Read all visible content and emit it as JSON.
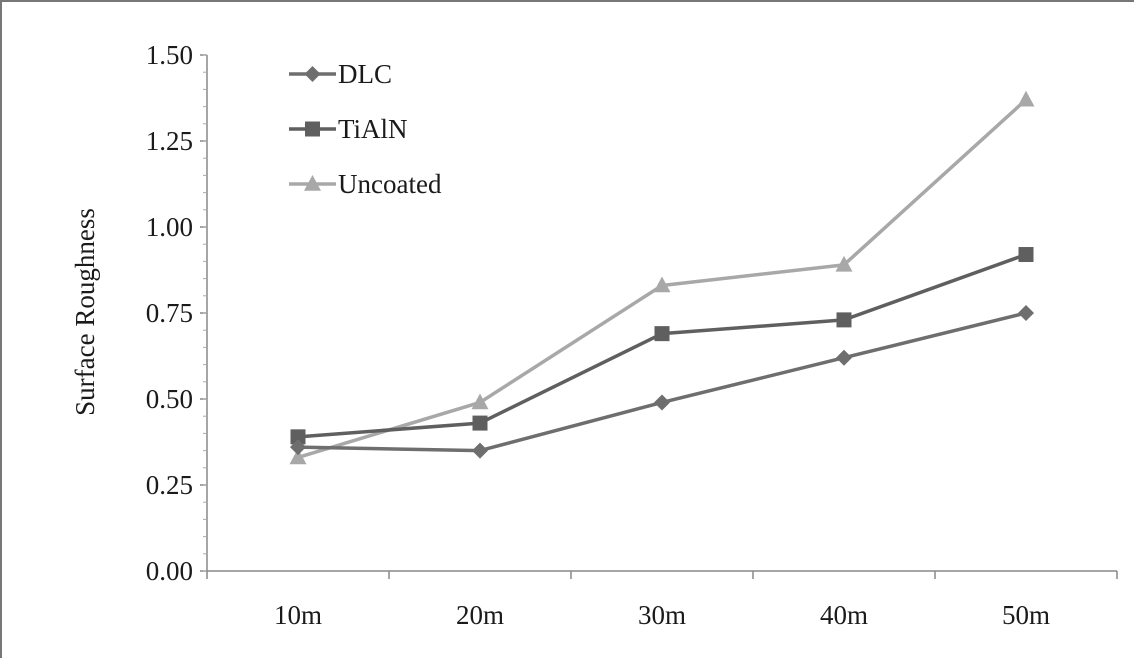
{
  "chart_data": {
    "type": "line",
    "title": "",
    "xlabel": "",
    "ylabel": "Surface Roughness",
    "categories": [
      "10m",
      "20m",
      "30m",
      "40m",
      "50m"
    ],
    "ylim": [
      0,
      1.5
    ],
    "yticks": [
      "0.00",
      "0.25",
      "0.50",
      "0.75",
      "1.00",
      "1.25",
      "1.50"
    ],
    "grid": false,
    "legend_position": "top-left",
    "series": [
      {
        "name": "DLC",
        "marker": "diamond",
        "color": "#6e6e6e",
        "values": [
          0.36,
          0.35,
          0.49,
          0.62,
          0.75
        ]
      },
      {
        "name": "TiAlN",
        "marker": "square",
        "color": "#5f5f5f",
        "values": [
          0.39,
          0.43,
          0.69,
          0.73,
          0.92
        ]
      },
      {
        "name": "Uncoated",
        "marker": "triangle",
        "color": "#a8a8a8",
        "values": [
          0.33,
          0.49,
          0.83,
          0.89,
          1.37
        ]
      }
    ]
  }
}
